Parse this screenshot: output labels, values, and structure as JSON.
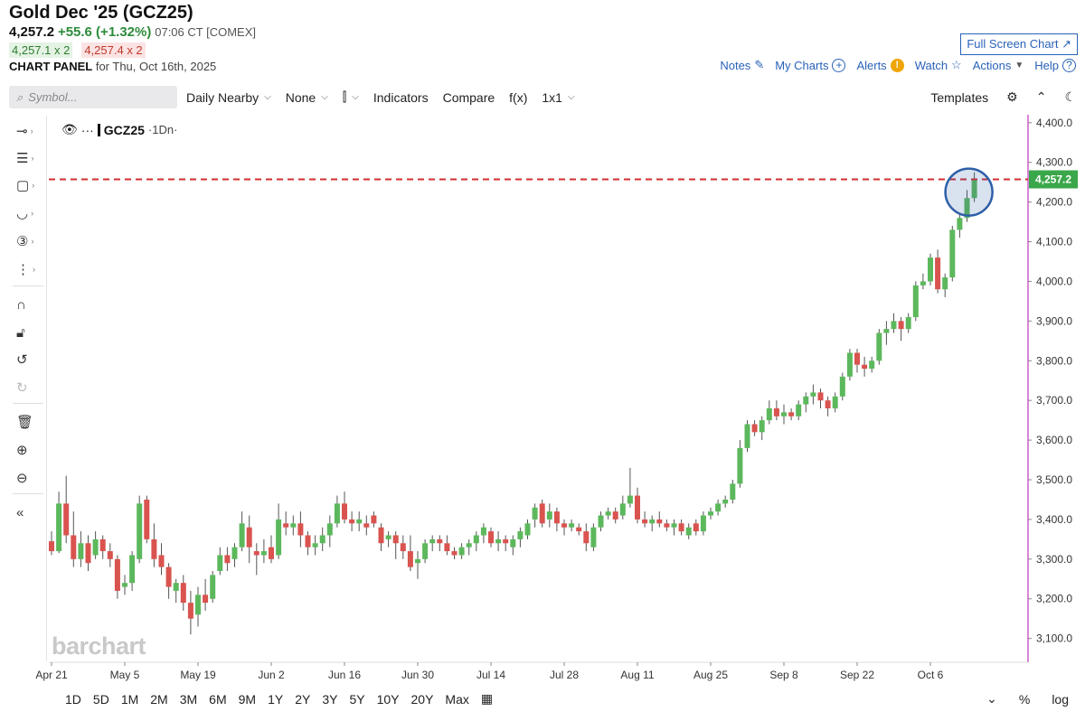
{
  "header": {
    "title": "Gold Dec '25 (GCZ25)",
    "last": "4,257.2",
    "change": "+55.6 (+1.32%)",
    "meta": "07:06 CT [COMEX]",
    "bid": "4,257.1 x 2",
    "ask": "4,257.4 x 2",
    "panel_label": "CHART PANEL",
    "panel_date": "for Thu, Oct 16th, 2025",
    "fullscreen": "Full Screen Chart ↗",
    "links": {
      "notes": "Notes",
      "mycharts": "My Charts",
      "alerts": "Alerts",
      "watch": "Watch",
      "actions": "Actions",
      "help": "Help"
    }
  },
  "toolbar": {
    "search_placeholder": "Symbol...",
    "daily": "Daily Nearby",
    "none": "None",
    "indicators": "Indicators",
    "compare": "Compare",
    "fx": "f(x)",
    "layout": "1x1",
    "templates": "Templates"
  },
  "legend": {
    "symbol": "GCZ25",
    "interval": "·1Dn·",
    "prefix": "···"
  },
  "watermark": "barchart",
  "ranges": [
    "1D",
    "5D",
    "1M",
    "2M",
    "3M",
    "6M",
    "9M",
    "1Y",
    "2Y",
    "3Y",
    "5Y",
    "10Y",
    "20Y",
    "Max"
  ],
  "bottom_right": {
    "percent": "%",
    "log": "log"
  },
  "colors": {
    "up": "#5cb85c",
    "down": "#d9534f",
    "price_line": "#d32f2f",
    "axis_line": "#b00ab0",
    "highlight": "#2e5fa8",
    "link": "#2a62b8"
  },
  "chart_data": {
    "type": "candlestick",
    "ylim": [
      3040,
      4420
    ],
    "yticks": [
      "4,400.0",
      "4,300.0",
      "4,200.0",
      "4,100.0",
      "4,000.0",
      "3,900.0",
      "3,800.0",
      "3,700.0",
      "3,600.0",
      "3,500.0",
      "3,400.0",
      "3,300.0",
      "3,200.0",
      "3,100.0"
    ],
    "ytick_values": [
      4400,
      4300,
      4200,
      4100,
      4000,
      3900,
      3800,
      3700,
      3600,
      3500,
      3400,
      3300,
      3200,
      3100
    ],
    "xticks": [
      "Apr 21",
      "May 5",
      "May 19",
      "Jun 2",
      "Jun 16",
      "Jun 30",
      "Jul 14",
      "Jul 28",
      "Aug 11",
      "Aug 25",
      "Sep 8",
      "Sep 22",
      "Oct 6"
    ],
    "xtick_index": [
      0,
      10,
      20,
      30,
      40,
      50,
      60,
      70,
      80,
      90,
      100,
      110,
      120
    ],
    "last_price": 4257.2,
    "last_price_label": "4,257.2",
    "candles": [
      [
        3345,
        3370,
        3310,
        3320
      ],
      [
        3320,
        3470,
        3315,
        3440
      ],
      [
        3440,
        3510,
        3340,
        3360
      ],
      [
        3360,
        3420,
        3280,
        3300
      ],
      [
        3300,
        3370,
        3280,
        3340
      ],
      [
        3340,
        3360,
        3270,
        3290
      ],
      [
        3310,
        3370,
        3300,
        3350
      ],
      [
        3350,
        3360,
        3300,
        3320
      ],
      [
        3320,
        3340,
        3280,
        3300
      ],
      [
        3300,
        3310,
        3200,
        3220
      ],
      [
        3230,
        3260,
        3210,
        3240
      ],
      [
        3240,
        3320,
        3220,
        3310
      ],
      [
        3300,
        3460,
        3290,
        3440
      ],
      [
        3450,
        3460,
        3340,
        3350
      ],
      [
        3350,
        3390,
        3280,
        3300
      ],
      [
        3310,
        3340,
        3260,
        3280
      ],
      [
        3280,
        3290,
        3200,
        3230
      ],
      [
        3220,
        3250,
        3190,
        3240
      ],
      [
        3240,
        3260,
        3170,
        3190
      ],
      [
        3190,
        3220,
        3110,
        3150
      ],
      [
        3160,
        3230,
        3130,
        3210
      ],
      [
        3210,
        3250,
        3170,
        3190
      ],
      [
        3200,
        3270,
        3190,
        3260
      ],
      [
        3270,
        3330,
        3260,
        3310
      ],
      [
        3310,
        3330,
        3270,
        3290
      ],
      [
        3300,
        3340,
        3280,
        3330
      ],
      [
        3330,
        3420,
        3320,
        3390
      ],
      [
        3380,
        3410,
        3290,
        3330
      ],
      [
        3320,
        3340,
        3260,
        3310
      ],
      [
        3310,
        3350,
        3290,
        3320
      ],
      [
        3330,
        3360,
        3290,
        3300
      ],
      [
        3310,
        3440,
        3300,
        3400
      ],
      [
        3390,
        3420,
        3360,
        3380
      ],
      [
        3380,
        3410,
        3360,
        3390
      ],
      [
        3390,
        3420,
        3330,
        3360
      ],
      [
        3360,
        3370,
        3310,
        3330
      ],
      [
        3330,
        3360,
        3310,
        3340
      ],
      [
        3340,
        3380,
        3320,
        3360
      ],
      [
        3360,
        3410,
        3330,
        3390
      ],
      [
        3390,
        3460,
        3380,
        3440
      ],
      [
        3440,
        3470,
        3390,
        3400
      ],
      [
        3400,
        3420,
        3370,
        3390
      ],
      [
        3390,
        3420,
        3370,
        3400
      ],
      [
        3390,
        3410,
        3360,
        3380
      ],
      [
        3410,
        3420,
        3380,
        3390
      ],
      [
        3380,
        3390,
        3320,
        3340
      ],
      [
        3350,
        3370,
        3330,
        3360
      ],
      [
        3360,
        3370,
        3300,
        3340
      ],
      [
        3340,
        3360,
        3300,
        3320
      ],
      [
        3320,
        3360,
        3270,
        3280
      ],
      [
        3290,
        3320,
        3250,
        3300
      ],
      [
        3300,
        3350,
        3290,
        3340
      ],
      [
        3340,
        3360,
        3320,
        3350
      ],
      [
        3350,
        3360,
        3320,
        3340
      ],
      [
        3340,
        3360,
        3310,
        3320
      ],
      [
        3320,
        3330,
        3300,
        3310
      ],
      [
        3310,
        3340,
        3300,
        3330
      ],
      [
        3330,
        3350,
        3310,
        3340
      ],
      [
        3340,
        3370,
        3320,
        3360
      ],
      [
        3360,
        3390,
        3340,
        3380
      ],
      [
        3370,
        3380,
        3330,
        3340
      ],
      [
        3340,
        3370,
        3320,
        3350
      ],
      [
        3350,
        3360,
        3320,
        3340
      ],
      [
        3330,
        3360,
        3310,
        3350
      ],
      [
        3350,
        3380,
        3330,
        3370
      ],
      [
        3360,
        3400,
        3350,
        3390
      ],
      [
        3400,
        3440,
        3380,
        3430
      ],
      [
        3440,
        3450,
        3380,
        3390
      ],
      [
        3400,
        3440,
        3380,
        3420
      ],
      [
        3420,
        3430,
        3370,
        3390
      ],
      [
        3390,
        3400,
        3360,
        3380
      ],
      [
        3380,
        3400,
        3370,
        3390
      ],
      [
        3380,
        3390,
        3360,
        3370
      ],
      [
        3370,
        3390,
        3320,
        3340
      ],
      [
        3330,
        3390,
        3320,
        3380
      ],
      [
        3380,
        3420,
        3370,
        3410
      ],
      [
        3410,
        3430,
        3400,
        3420
      ],
      [
        3420,
        3430,
        3390,
        3400
      ],
      [
        3410,
        3460,
        3400,
        3440
      ],
      [
        3440,
        3530,
        3430,
        3460
      ],
      [
        3460,
        3480,
        3390,
        3400
      ],
      [
        3400,
        3420,
        3380,
        3390
      ],
      [
        3390,
        3410,
        3370,
        3400
      ],
      [
        3400,
        3420,
        3380,
        3390
      ],
      [
        3390,
        3400,
        3370,
        3380
      ],
      [
        3380,
        3400,
        3360,
        3390
      ],
      [
        3390,
        3400,
        3360,
        3370
      ],
      [
        3360,
        3390,
        3350,
        3380
      ],
      [
        3390,
        3400,
        3360,
        3370
      ],
      [
        3370,
        3420,
        3360,
        3410
      ],
      [
        3410,
        3430,
        3400,
        3420
      ],
      [
        3420,
        3450,
        3410,
        3440
      ],
      [
        3440,
        3460,
        3430,
        3450
      ],
      [
        3450,
        3500,
        3440,
        3490
      ],
      [
        3490,
        3600,
        3480,
        3580
      ],
      [
        3580,
        3650,
        3570,
        3640
      ],
      [
        3640,
        3650,
        3610,
        3620
      ],
      [
        3620,
        3660,
        3600,
        3650
      ],
      [
        3650,
        3700,
        3640,
        3680
      ],
      [
        3680,
        3700,
        3650,
        3660
      ],
      [
        3660,
        3690,
        3640,
        3670
      ],
      [
        3670,
        3680,
        3650,
        3660
      ],
      [
        3660,
        3700,
        3650,
        3690
      ],
      [
        3690,
        3720,
        3670,
        3710
      ],
      [
        3710,
        3740,
        3690,
        3720
      ],
      [
        3720,
        3730,
        3680,
        3700
      ],
      [
        3700,
        3710,
        3660,
        3680
      ],
      [
        3680,
        3720,
        3670,
        3710
      ],
      [
        3710,
        3770,
        3700,
        3760
      ],
      [
        3760,
        3830,
        3750,
        3820
      ],
      [
        3820,
        3830,
        3770,
        3790
      ],
      [
        3790,
        3810,
        3760,
        3780
      ],
      [
        3780,
        3810,
        3770,
        3800
      ],
      [
        3800,
        3880,
        3790,
        3870
      ],
      [
        3870,
        3900,
        3840,
        3880
      ],
      [
        3880,
        3920,
        3870,
        3900
      ],
      [
        3900,
        3910,
        3850,
        3880
      ],
      [
        3880,
        3920,
        3870,
        3910
      ],
      [
        3910,
        4000,
        3900,
        3990
      ],
      [
        3990,
        4020,
        3980,
        4000
      ],
      [
        4000,
        4070,
        3990,
        4060
      ],
      [
        4060,
        4080,
        3970,
        3980
      ],
      [
        3980,
        4020,
        3960,
        4010
      ],
      [
        4010,
        4140,
        4000,
        4130
      ],
      [
        4130,
        4170,
        4110,
        4160
      ],
      [
        4160,
        4230,
        4150,
        4210
      ],
      [
        4210,
        4275,
        4200,
        4257.2
      ]
    ]
  }
}
